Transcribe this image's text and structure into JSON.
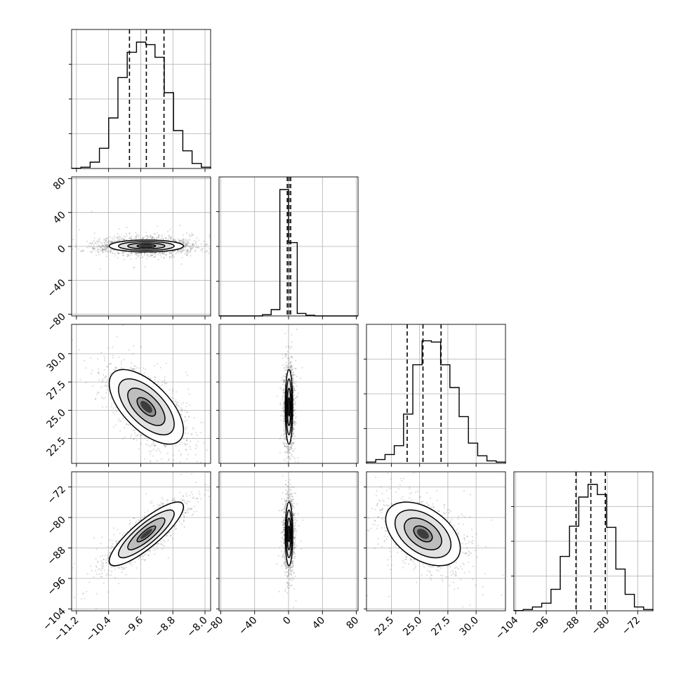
{
  "chart_data": {
    "type": "corner",
    "grid": true,
    "parameters": [
      {
        "ticks": [
          "−11.2",
          "−10.4",
          "−9.6",
          "−8.8",
          "−8.0"
        ],
        "tick_values": [
          -11.2,
          -10.4,
          -9.6,
          -8.8,
          -8.0
        ],
        "range": [
          -11.32,
          -7.86
        ],
        "hist": [
          0.002,
          0.01,
          0.05,
          0.16,
          0.4,
          0.72,
          0.92,
          1.0,
          0.98,
          0.88,
          0.6,
          0.3,
          0.14,
          0.04,
          0.01
        ],
        "quantiles": [
          -9.88,
          -9.46,
          -9.02
        ]
      },
      {
        "ticks": [
          "−80",
          "−40",
          "0",
          "40",
          "80"
        ],
        "tick_values": [
          -80,
          -40,
          0,
          40,
          80
        ],
        "range": [
          -82,
          82
        ],
        "hist": [
          0.0,
          0.0,
          0.0,
          0.0,
          0.0,
          0.01,
          0.05,
          1.0,
          0.58,
          0.02,
          0.005,
          0.0,
          0.0,
          0.0,
          0.0,
          0.0
        ],
        "quantiles": [
          -1.5,
          0.5,
          2.5
        ]
      },
      {
        "ticks": [
          "22.5",
          "25.0",
          "27.5",
          "30.0"
        ],
        "tick_values": [
          22.5,
          25.0,
          27.5,
          30.0
        ],
        "range": [
          20.3,
          32.6
        ],
        "hist": [
          0.01,
          0.03,
          0.07,
          0.14,
          0.39,
          0.78,
          0.97,
          0.96,
          0.78,
          0.6,
          0.37,
          0.16,
          0.06,
          0.02,
          0.01
        ],
        "quantiles": [
          23.9,
          25.3,
          26.9
        ]
      },
      {
        "ticks": [
          "−104",
          "−96",
          "−88",
          "−80",
          "−72"
        ],
        "tick_values": [
          -104,
          -96,
          -88,
          -80,
          -72
        ],
        "range": [
          -104.5,
          -68
        ],
        "hist": [
          0.002,
          0.01,
          0.03,
          0.06,
          0.17,
          0.43,
          0.67,
          0.9,
          1.0,
          0.92,
          0.66,
          0.33,
          0.13,
          0.03,
          0.01
        ],
        "quantiles": [
          -88.2,
          -84.3,
          -80.5
        ]
      }
    ],
    "pairs": [
      {
        "row": 1,
        "col": 0,
        "mean": [
          -9.46,
          0.5
        ],
        "sd": [
          0.42,
          3.2
        ],
        "rho": 0.0,
        "fuzz": [
          0.55,
          4.6
        ]
      },
      {
        "row": 2,
        "col": 0,
        "mean": [
          -9.46,
          25.3
        ],
        "sd": [
          0.42,
          1.5
        ],
        "rho": -0.62,
        "fuzz": [
          0.42,
          1.5
        ]
      },
      {
        "row": 2,
        "col": 1,
        "mean": [
          0.5,
          25.3
        ],
        "sd": [
          2.0,
          1.5
        ],
        "rho": 0.0,
        "fuzz": [
          2.6,
          1.6
        ]
      },
      {
        "row": 3,
        "col": 0,
        "mean": [
          -9.46,
          -84.3
        ],
        "sd": [
          0.42,
          3.8
        ],
        "rho": 0.85,
        "fuzz": [
          0.42,
          3.8
        ]
      },
      {
        "row": 3,
        "col": 1,
        "mean": [
          0.5,
          -84.3
        ],
        "sd": [
          2.0,
          3.8
        ],
        "rho": 0.0,
        "fuzz": [
          2.6,
          4.0
        ]
      },
      {
        "row": 3,
        "col": 2,
        "mean": [
          25.3,
          -84.3
        ],
        "sd": [
          1.5,
          3.8
        ],
        "rho": -0.45,
        "fuzz": [
          1.5,
          3.8
        ]
      }
    ],
    "contour_levels_sigma": [
      0.5,
      1.0,
      1.5,
      2.0
    ]
  }
}
